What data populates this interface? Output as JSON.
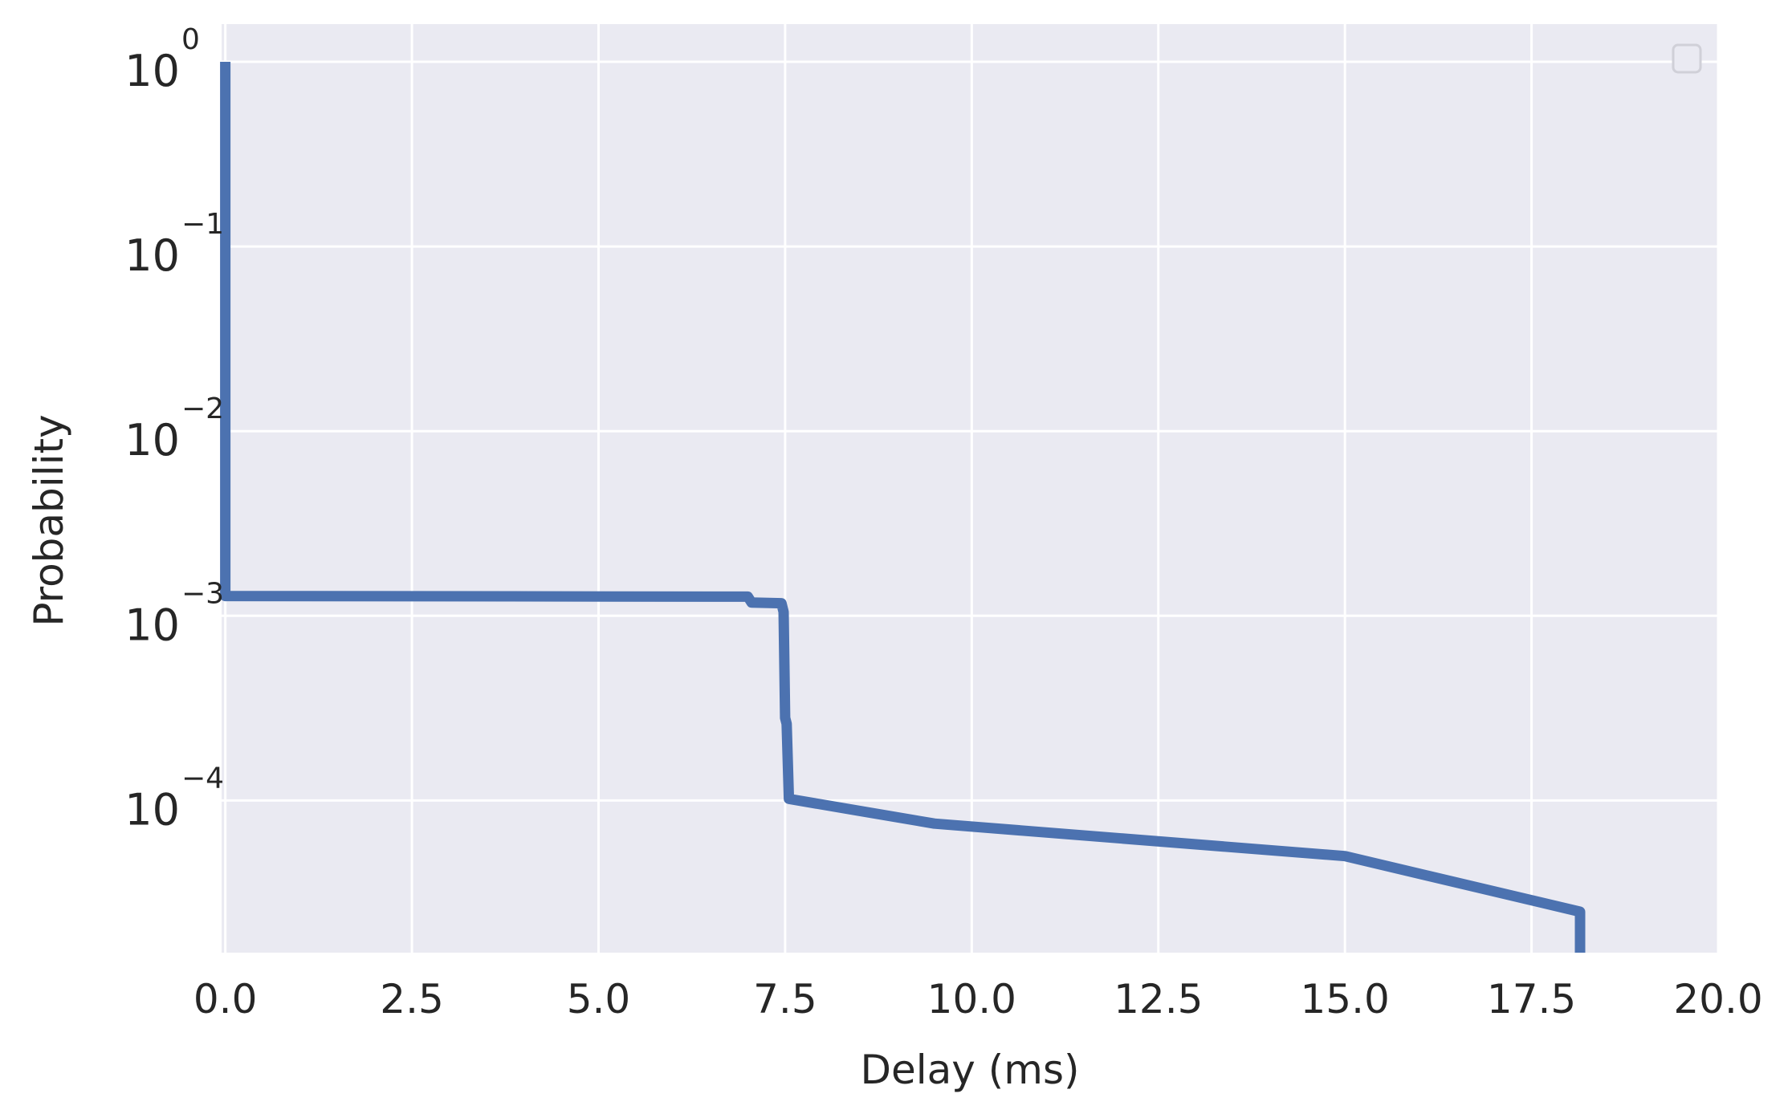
{
  "chart_data": {
    "type": "line",
    "title": "",
    "xlabel": "Delay (ms)",
    "ylabel": "Probability",
    "xlim": [
      -0.05,
      20.0
    ],
    "ylim": [
      1.5e-05,
      1.6
    ],
    "yscale": "log",
    "grid": true,
    "legend": {
      "placement": "upper right",
      "entries": []
    },
    "x_ticks": [
      0.0,
      2.5,
      5.0,
      7.5,
      10.0,
      12.5,
      15.0,
      17.5,
      20.0
    ],
    "x_tick_labels": [
      "0.0",
      "2.5",
      "5.0",
      "7.5",
      "10.0",
      "12.5",
      "15.0",
      "17.5",
      "20.0"
    ],
    "y_ticks": [
      1,
      0.1,
      0.01,
      0.001,
      0.0001
    ],
    "y_tick_labels": [
      {
        "base": "10",
        "exp": "0"
      },
      {
        "base": "10",
        "exp": "−1"
      },
      {
        "base": "10",
        "exp": "−2"
      },
      {
        "base": "10",
        "exp": "−3"
      },
      {
        "base": "10",
        "exp": "−4"
      }
    ],
    "colors": {
      "line": "#4c72b0",
      "plot_background": "#eaeaf2",
      "grid": "#ffffff"
    },
    "series": [
      {
        "x": [
          0.0,
          0.0,
          7.0,
          7.05,
          7.45,
          7.48,
          7.5,
          7.52,
          7.55,
          9.5,
          15.0,
          18.15,
          18.15
        ],
        "y": [
          1.0,
          0.00128,
          0.00127,
          0.00118,
          0.00117,
          0.00105,
          0.00028,
          0.00026,
          0.000102,
          7.5e-05,
          5e-05,
          2.5e-05,
          1.5e-05
        ]
      }
    ]
  }
}
